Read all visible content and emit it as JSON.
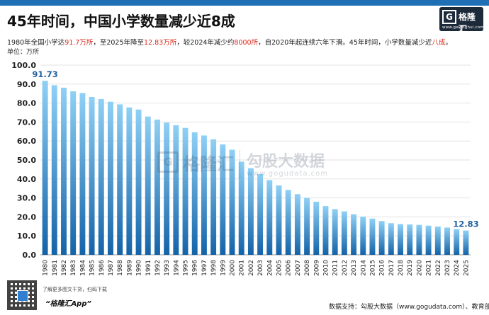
{
  "header": {
    "title": "45年时间，中国小学数量减少近8成",
    "subtitle_parts": [
      {
        "text": "1980年全国小学达",
        "hl": false
      },
      {
        "text": "91.7万所",
        "hl": true
      },
      {
        "text": "，至2025年降至",
        "hl": false
      },
      {
        "text": "12.83万所",
        "hl": true
      },
      {
        "text": "，较2024年减少约",
        "hl": false
      },
      {
        "text": "8000所",
        "hl": true
      },
      {
        "text": "，自2020年起连续六年下滑。45年时间，小学数量减少近",
        "hl": false
      },
      {
        "text": "八成",
        "hl": true
      },
      {
        "text": "。",
        "hl": false
      }
    ],
    "unit_label": "单位：万所"
  },
  "logo": {
    "mark": "G",
    "name": "格隆汇",
    "url": "www.gelonghui.com"
  },
  "watermark": {
    "brand": "格隆汇",
    "partner": "勾股大数据",
    "partner_url": "www.gogudata.com"
  },
  "footer": {
    "promo_line": "了解更多图文干货，扫码下载",
    "app_name": "“格隆汇App”",
    "source": "数据支持：勾股大数据（www.gogudata.com）、教育部"
  },
  "colors": {
    "bar_top": "#8fd0f5",
    "bar_bottom": "#1463a8",
    "label": "#1f5fa0",
    "accent_red": "#d9281c"
  },
  "chart_data": {
    "type": "bar",
    "title": "45年时间，中国小学数量减少近8成",
    "ylabel": "单位：万所",
    "ylim": [
      0,
      100
    ],
    "yticks": [
      "0.0",
      "10.0",
      "20.0",
      "30.0",
      "40.0",
      "50.0",
      "60.0",
      "70.0",
      "80.0",
      "90.0",
      "100.0"
    ],
    "grid": true,
    "categories": [
      "1980",
      "1981",
      "1982",
      "1983",
      "1984",
      "1985",
      "1986",
      "1987",
      "1988",
      "1989",
      "1990",
      "1991",
      "1992",
      "1993",
      "1994",
      "1995",
      "1996",
      "1997",
      "1998",
      "1999",
      "2000",
      "2001",
      "2002",
      "2003",
      "2004",
      "2005",
      "2006",
      "2007",
      "2008",
      "2009",
      "2010",
      "2011",
      "2012",
      "2013",
      "2014",
      "2015",
      "2016",
      "2017",
      "2018",
      "2019",
      "2020",
      "2021",
      "2022",
      "2023",
      "2024",
      "2025"
    ],
    "values": [
      91.73,
      89.4,
      88.1,
      86.2,
      85.3,
      83.2,
      82.1,
      80.7,
      79.3,
      77.7,
      76.6,
      72.9,
      71.3,
      69.7,
      68.3,
      66.9,
      64.6,
      62.9,
      60.9,
      58.2,
      55.4,
      49.1,
      45.7,
      42.6,
      39.4,
      36.6,
      34.2,
      32.0,
      30.0,
      28.0,
      25.7,
      24.1,
      22.9,
      21.4,
      20.1,
      19.1,
      17.8,
      16.7,
      16.2,
      16.0,
      15.8,
      15.4,
      14.9,
      14.4,
      13.6,
      12.83
    ],
    "data_labels": [
      {
        "category": "1980",
        "text": "91.73"
      },
      {
        "category": "2025",
        "text": "12.83"
      }
    ]
  }
}
